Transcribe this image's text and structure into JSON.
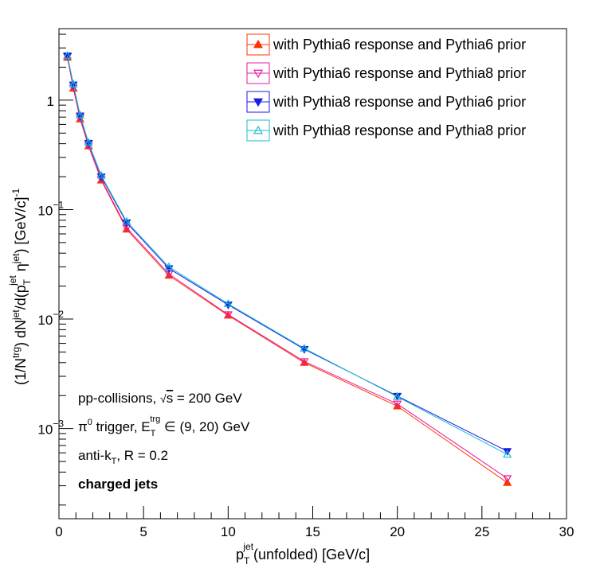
{
  "chart_data": {
    "type": "line",
    "y_scale": "log",
    "xlim": [
      0,
      30
    ],
    "ylim": [
      0.00015,
      4.5
    ],
    "grid": false,
    "legend_position": "top-right",
    "xlabel": {
      "base": "p",
      "sup": "jet",
      "sub": "T",
      "rest": "(unfolded) [GeV/c]"
    },
    "ylabel": "(1/N^trg) dN^jet/d(p_T^jet η^jet) [GeV/c]^-1",
    "x_ticks": [
      {
        "value": 0,
        "label": "0"
      },
      {
        "value": 5,
        "label": "5"
      },
      {
        "value": 10,
        "label": "10"
      },
      {
        "value": 15,
        "label": "15"
      },
      {
        "value": 20,
        "label": "20"
      },
      {
        "value": 25,
        "label": "25"
      },
      {
        "value": 30,
        "label": "30"
      }
    ],
    "y_ticks": [
      {
        "value": 1,
        "label": "1"
      },
      {
        "value": 0.1,
        "label": "10",
        "exp": "−1"
      },
      {
        "value": 0.01,
        "label": "10",
        "exp": "−2"
      },
      {
        "value": 0.001,
        "label": "10",
        "exp": "−3"
      }
    ],
    "x": [
      0.5,
      0.85,
      1.25,
      1.75,
      2.5,
      4.0,
      6.5,
      10.0,
      14.5,
      20.0,
      26.5
    ],
    "series": [
      {
        "name": "with Pythia6 response and Pythia6 prior",
        "color": "#ff3300",
        "marker": "triangle-up-filled",
        "values": [
          2.45,
          1.28,
          0.67,
          0.38,
          0.185,
          0.066,
          0.025,
          0.0108,
          0.004,
          0.0016,
          0.00032
        ]
      },
      {
        "name": "with Pythia6 response and Pythia8 prior",
        "color": "#e6199e",
        "marker": "triangle-down-open",
        "values": [
          2.5,
          1.3,
          0.69,
          0.385,
          0.19,
          0.068,
          0.0258,
          0.011,
          0.0041,
          0.00168,
          0.00035
        ]
      },
      {
        "name": "with Pythia8 response and Pythia6 prior",
        "color": "#1a1ae6",
        "marker": "triangle-down-filled",
        "values": [
          2.55,
          1.38,
          0.72,
          0.405,
          0.2,
          0.076,
          0.029,
          0.0135,
          0.0053,
          0.00198,
          0.00062
        ]
      },
      {
        "name": "with Pythia8 response and Pythia8 prior",
        "color": "#17becf",
        "marker": "triangle-up-open",
        "values": [
          2.55,
          1.4,
          0.73,
          0.41,
          0.205,
          0.078,
          0.03,
          0.0138,
          0.0054,
          0.00195,
          0.00058
        ]
      }
    ],
    "annotations": {
      "line1": {
        "pre": "pp-collisions, ",
        "sqrt": "√",
        "s": "s",
        "post": " = 200 GeV"
      },
      "line2": {
        "pi": "π",
        "pi_sup": "0",
        "mid": " trigger, E",
        "e_sup": "trg",
        "e_sub": "T",
        "post": " ∈ (9, 20) GeV"
      },
      "line3": {
        "pre": "anti-k",
        "sub": "T",
        "post": ", R = 0.2"
      },
      "line4": "charged jets"
    }
  }
}
